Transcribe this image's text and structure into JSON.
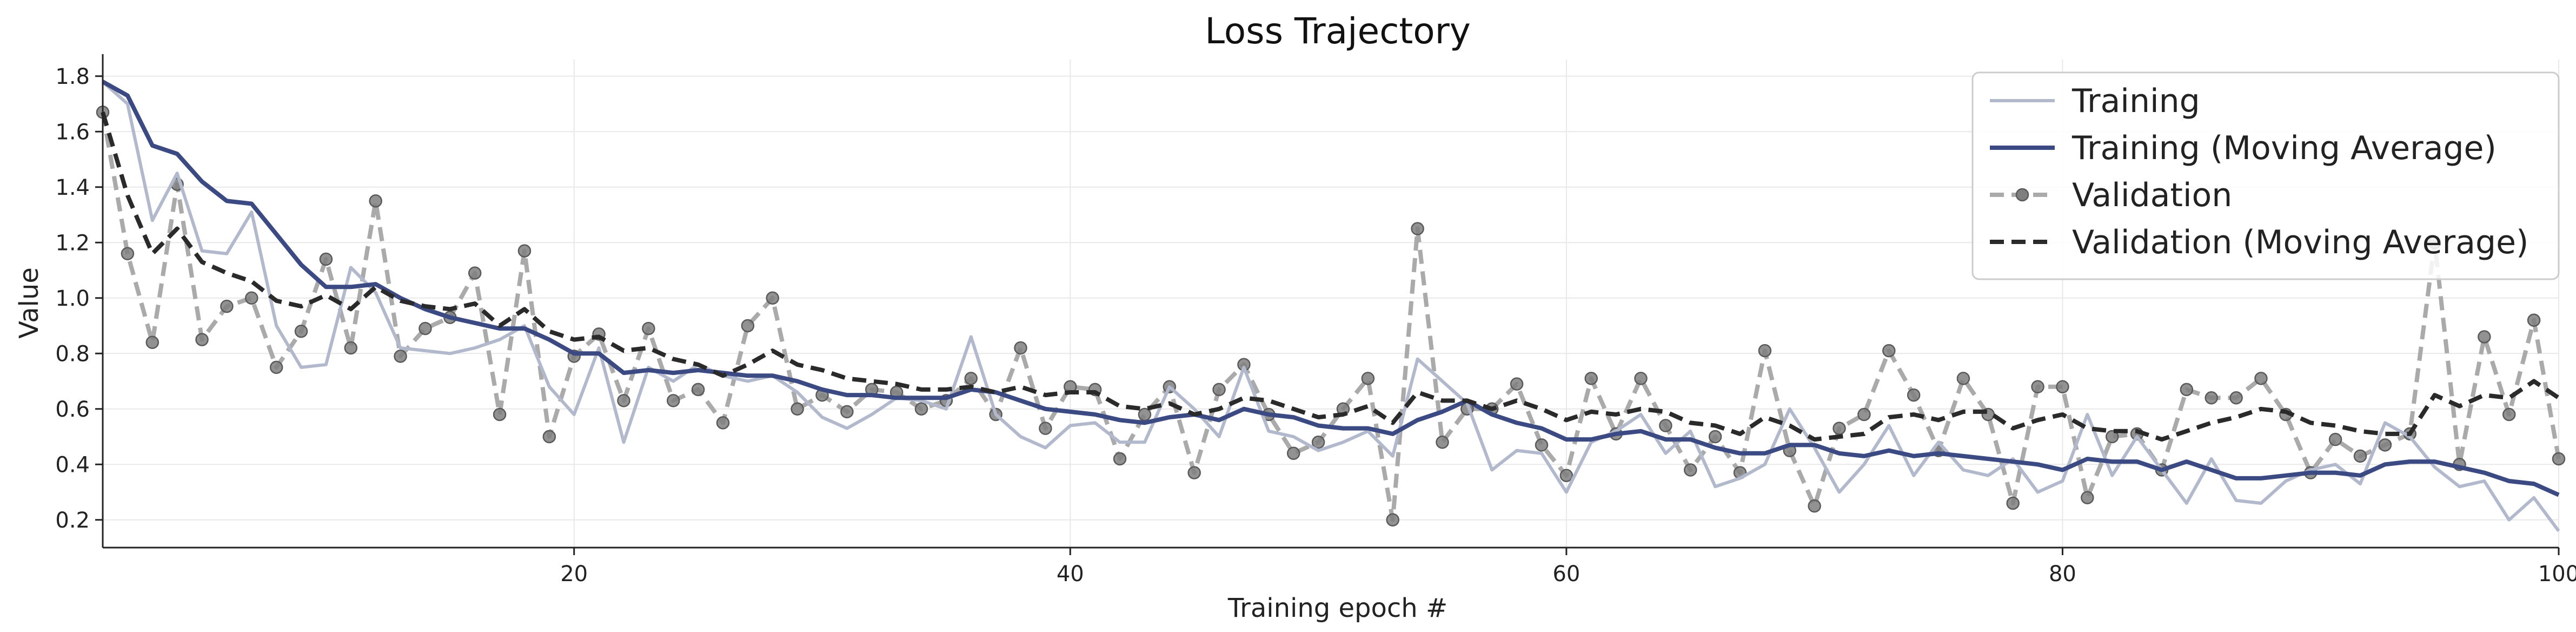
{
  "chart_data": {
    "type": "line",
    "title": "Loss Trajectory",
    "xlabel": "Training epoch #",
    "ylabel": "Value",
    "xlim": [
      1,
      100
    ],
    "ylim": [
      0.1,
      1.86
    ],
    "xticks": [
      20,
      40,
      60,
      80,
      100
    ],
    "yticks": [
      0.2,
      0.4,
      0.6,
      0.8,
      1.0,
      1.2,
      1.4,
      1.6,
      1.8
    ],
    "grid": true,
    "legend_position": "top-right",
    "x": [
      1,
      2,
      3,
      4,
      5,
      6,
      7,
      8,
      9,
      10,
      11,
      12,
      13,
      14,
      15,
      16,
      17,
      18,
      19,
      20,
      21,
      22,
      23,
      24,
      25,
      26,
      27,
      28,
      29,
      30,
      31,
      32,
      33,
      34,
      35,
      36,
      37,
      38,
      39,
      40,
      41,
      42,
      43,
      44,
      45,
      46,
      47,
      48,
      49,
      50,
      51,
      52,
      53,
      54,
      55,
      56,
      57,
      58,
      59,
      60,
      61,
      62,
      63,
      64,
      65,
      66,
      67,
      68,
      69,
      70,
      71,
      72,
      73,
      74,
      75,
      76,
      77,
      78,
      79,
      80,
      81,
      82,
      83,
      84,
      85,
      86,
      87,
      88,
      89,
      90,
      91,
      92,
      93,
      94,
      95,
      96,
      97,
      98,
      99,
      100
    ],
    "series": [
      {
        "name": "Training",
        "color": "#b2b9cd",
        "style": "solid",
        "values": [
          1.78,
          1.7,
          1.28,
          1.45,
          1.17,
          1.16,
          1.31,
          0.9,
          0.75,
          0.76,
          1.11,
          1.02,
          0.82,
          0.81,
          0.8,
          0.82,
          0.85,
          0.9,
          0.68,
          0.58,
          0.82,
          0.48,
          0.75,
          0.7,
          0.76,
          0.72,
          0.7,
          0.72,
          0.66,
          0.57,
          0.53,
          0.58,
          0.64,
          0.63,
          0.6,
          0.86,
          0.58,
          0.5,
          0.46,
          0.54,
          0.55,
          0.48,
          0.48,
          0.68,
          0.6,
          0.5,
          0.75,
          0.52,
          0.5,
          0.45,
          0.48,
          0.52,
          0.43,
          0.78,
          0.7,
          0.62,
          0.38,
          0.45,
          0.44,
          0.3,
          0.48,
          0.52,
          0.58,
          0.44,
          0.52,
          0.32,
          0.35,
          0.4,
          0.6,
          0.46,
          0.3,
          0.4,
          0.54,
          0.36,
          0.48,
          0.38,
          0.36,
          0.42,
          0.3,
          0.34,
          0.58,
          0.36,
          0.5,
          0.38,
          0.26,
          0.42,
          0.27,
          0.26,
          0.34,
          0.38,
          0.4,
          0.33,
          0.55,
          0.5,
          0.39,
          0.32,
          0.34,
          0.2,
          0.28,
          0.16
        ]
      },
      {
        "name": "Training (Moving Average)",
        "color": "#3b4a82",
        "style": "solid",
        "values": [
          1.78,
          1.73,
          1.55,
          1.52,
          1.42,
          1.35,
          1.34,
          1.23,
          1.12,
          1.04,
          1.04,
          1.05,
          1.0,
          0.96,
          0.93,
          0.91,
          0.89,
          0.89,
          0.85,
          0.8,
          0.8,
          0.73,
          0.74,
          0.73,
          0.74,
          0.73,
          0.72,
          0.72,
          0.7,
          0.67,
          0.65,
          0.65,
          0.64,
          0.64,
          0.64,
          0.67,
          0.66,
          0.63,
          0.6,
          0.59,
          0.58,
          0.56,
          0.55,
          0.57,
          0.58,
          0.56,
          0.6,
          0.58,
          0.57,
          0.54,
          0.53,
          0.53,
          0.51,
          0.56,
          0.59,
          0.63,
          0.58,
          0.55,
          0.53,
          0.49,
          0.49,
          0.51,
          0.52,
          0.49,
          0.49,
          0.46,
          0.44,
          0.44,
          0.47,
          0.47,
          0.44,
          0.43,
          0.45,
          0.43,
          0.44,
          0.43,
          0.42,
          0.41,
          0.4,
          0.38,
          0.42,
          0.41,
          0.41,
          0.38,
          0.41,
          0.38,
          0.35,
          0.35,
          0.36,
          0.37,
          0.37,
          0.36,
          0.4,
          0.41,
          0.41,
          0.39,
          0.37,
          0.34,
          0.33,
          0.29
        ]
      },
      {
        "name": "Validation",
        "color": "#aaaaaa",
        "style": "dashed-marker",
        "values": [
          1.67,
          1.16,
          0.84,
          1.41,
          0.85,
          0.97,
          1.0,
          0.75,
          0.88,
          1.14,
          0.82,
          1.35,
          0.79,
          0.89,
          0.93,
          1.09,
          0.58,
          1.17,
          0.5,
          0.79,
          0.87,
          0.63,
          0.89,
          0.63,
          0.67,
          0.55,
          0.9,
          1.0,
          0.6,
          0.65,
          0.59,
          0.67,
          0.66,
          0.6,
          0.63,
          0.71,
          0.58,
          0.82,
          0.53,
          0.68,
          0.67,
          0.42,
          0.58,
          0.68,
          0.37,
          0.67,
          0.76,
          0.58,
          0.44,
          0.48,
          0.6,
          0.71,
          0.2,
          1.25,
          0.48,
          0.6,
          0.6,
          0.69,
          0.47,
          0.36,
          0.71,
          0.51,
          0.71,
          0.54,
          0.38,
          0.5,
          0.37,
          0.81,
          0.45,
          0.25,
          0.53,
          0.58,
          0.81,
          0.65,
          0.45,
          0.71,
          0.58,
          0.26,
          0.68,
          0.68,
          0.28,
          0.5,
          0.51,
          0.38,
          0.67,
          0.64,
          0.64,
          0.71,
          0.58,
          0.37,
          0.49,
          0.43,
          0.47,
          0.51,
          1.2,
          0.4,
          0.86,
          0.58,
          0.92,
          0.42
        ]
      },
      {
        "name": "Validation (Moving Average)",
        "color": "#2a2a2a",
        "style": "dashed",
        "values": [
          1.67,
          1.37,
          1.16,
          1.25,
          1.13,
          1.09,
          1.06,
          0.99,
          0.97,
          1.01,
          0.96,
          1.04,
          0.99,
          0.97,
          0.96,
          0.98,
          0.9,
          0.96,
          0.88,
          0.85,
          0.86,
          0.81,
          0.82,
          0.78,
          0.76,
          0.72,
          0.76,
          0.81,
          0.76,
          0.74,
          0.71,
          0.7,
          0.69,
          0.67,
          0.67,
          0.68,
          0.66,
          0.68,
          0.65,
          0.66,
          0.66,
          0.61,
          0.6,
          0.62,
          0.58,
          0.6,
          0.64,
          0.63,
          0.6,
          0.57,
          0.58,
          0.61,
          0.55,
          0.66,
          0.63,
          0.63,
          0.6,
          0.63,
          0.6,
          0.56,
          0.59,
          0.58,
          0.6,
          0.59,
          0.55,
          0.54,
          0.51,
          0.57,
          0.54,
          0.49,
          0.5,
          0.51,
          0.57,
          0.58,
          0.56,
          0.59,
          0.59,
          0.53,
          0.56,
          0.58,
          0.53,
          0.52,
          0.52,
          0.49,
          0.52,
          0.55,
          0.57,
          0.6,
          0.59,
          0.55,
          0.54,
          0.52,
          0.51,
          0.51,
          0.65,
          0.61,
          0.65,
          0.64,
          0.7,
          0.64
        ]
      }
    ]
  }
}
